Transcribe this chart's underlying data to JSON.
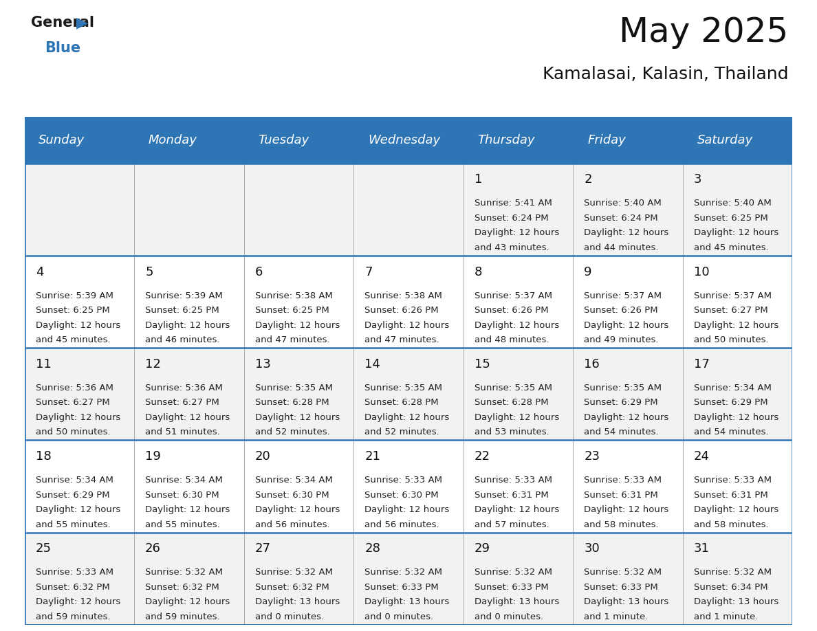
{
  "title": "May 2025",
  "subtitle": "Kamalasai, Kalasin, Thailand",
  "header_bg": "#2E75B6",
  "header_text_color": "#FFFFFF",
  "day_names": [
    "Sunday",
    "Monday",
    "Tuesday",
    "Wednesday",
    "Thursday",
    "Friday",
    "Saturday"
  ],
  "cell_bg_row0": "#F2F2F2",
  "cell_bg_row1": "#FFFFFF",
  "cell_bg_row2": "#F2F2F2",
  "cell_bg_row3": "#FFFFFF",
  "cell_bg_row4": "#F2F2F2",
  "border_color": "#2E75B6",
  "grid_line_color": "#AAAAAA",
  "days": [
    {
      "day": null,
      "col": 0,
      "row": 0
    },
    {
      "day": null,
      "col": 1,
      "row": 0
    },
    {
      "day": null,
      "col": 2,
      "row": 0
    },
    {
      "day": null,
      "col": 3,
      "row": 0
    },
    {
      "day": 1,
      "col": 4,
      "row": 0,
      "sunrise": "5:41 AM",
      "sunset": "6:24 PM",
      "daylight_h": "12 hours",
      "daylight_m": "43 minutes."
    },
    {
      "day": 2,
      "col": 5,
      "row": 0,
      "sunrise": "5:40 AM",
      "sunset": "6:24 PM",
      "daylight_h": "12 hours",
      "daylight_m": "44 minutes."
    },
    {
      "day": 3,
      "col": 6,
      "row": 0,
      "sunrise": "5:40 AM",
      "sunset": "6:25 PM",
      "daylight_h": "12 hours",
      "daylight_m": "45 minutes."
    },
    {
      "day": 4,
      "col": 0,
      "row": 1,
      "sunrise": "5:39 AM",
      "sunset": "6:25 PM",
      "daylight_h": "12 hours",
      "daylight_m": "45 minutes."
    },
    {
      "day": 5,
      "col": 1,
      "row": 1,
      "sunrise": "5:39 AM",
      "sunset": "6:25 PM",
      "daylight_h": "12 hours",
      "daylight_m": "46 minutes."
    },
    {
      "day": 6,
      "col": 2,
      "row": 1,
      "sunrise": "5:38 AM",
      "sunset": "6:25 PM",
      "daylight_h": "12 hours",
      "daylight_m": "47 minutes."
    },
    {
      "day": 7,
      "col": 3,
      "row": 1,
      "sunrise": "5:38 AM",
      "sunset": "6:26 PM",
      "daylight_h": "12 hours",
      "daylight_m": "47 minutes."
    },
    {
      "day": 8,
      "col": 4,
      "row": 1,
      "sunrise": "5:37 AM",
      "sunset": "6:26 PM",
      "daylight_h": "12 hours",
      "daylight_m": "48 minutes."
    },
    {
      "day": 9,
      "col": 5,
      "row": 1,
      "sunrise": "5:37 AM",
      "sunset": "6:26 PM",
      "daylight_h": "12 hours",
      "daylight_m": "49 minutes."
    },
    {
      "day": 10,
      "col": 6,
      "row": 1,
      "sunrise": "5:37 AM",
      "sunset": "6:27 PM",
      "daylight_h": "12 hours",
      "daylight_m": "50 minutes."
    },
    {
      "day": 11,
      "col": 0,
      "row": 2,
      "sunrise": "5:36 AM",
      "sunset": "6:27 PM",
      "daylight_h": "12 hours",
      "daylight_m": "50 minutes."
    },
    {
      "day": 12,
      "col": 1,
      "row": 2,
      "sunrise": "5:36 AM",
      "sunset": "6:27 PM",
      "daylight_h": "12 hours",
      "daylight_m": "51 minutes."
    },
    {
      "day": 13,
      "col": 2,
      "row": 2,
      "sunrise": "5:35 AM",
      "sunset": "6:28 PM",
      "daylight_h": "12 hours",
      "daylight_m": "52 minutes."
    },
    {
      "day": 14,
      "col": 3,
      "row": 2,
      "sunrise": "5:35 AM",
      "sunset": "6:28 PM",
      "daylight_h": "12 hours",
      "daylight_m": "52 minutes."
    },
    {
      "day": 15,
      "col": 4,
      "row": 2,
      "sunrise": "5:35 AM",
      "sunset": "6:28 PM",
      "daylight_h": "12 hours",
      "daylight_m": "53 minutes."
    },
    {
      "day": 16,
      "col": 5,
      "row": 2,
      "sunrise": "5:35 AM",
      "sunset": "6:29 PM",
      "daylight_h": "12 hours",
      "daylight_m": "54 minutes."
    },
    {
      "day": 17,
      "col": 6,
      "row": 2,
      "sunrise": "5:34 AM",
      "sunset": "6:29 PM",
      "daylight_h": "12 hours",
      "daylight_m": "54 minutes."
    },
    {
      "day": 18,
      "col": 0,
      "row": 3,
      "sunrise": "5:34 AM",
      "sunset": "6:29 PM",
      "daylight_h": "12 hours",
      "daylight_m": "55 minutes."
    },
    {
      "day": 19,
      "col": 1,
      "row": 3,
      "sunrise": "5:34 AM",
      "sunset": "6:30 PM",
      "daylight_h": "12 hours",
      "daylight_m": "55 minutes."
    },
    {
      "day": 20,
      "col": 2,
      "row": 3,
      "sunrise": "5:34 AM",
      "sunset": "6:30 PM",
      "daylight_h": "12 hours",
      "daylight_m": "56 minutes."
    },
    {
      "day": 21,
      "col": 3,
      "row": 3,
      "sunrise": "5:33 AM",
      "sunset": "6:30 PM",
      "daylight_h": "12 hours",
      "daylight_m": "56 minutes."
    },
    {
      "day": 22,
      "col": 4,
      "row": 3,
      "sunrise": "5:33 AM",
      "sunset": "6:31 PM",
      "daylight_h": "12 hours",
      "daylight_m": "57 minutes."
    },
    {
      "day": 23,
      "col": 5,
      "row": 3,
      "sunrise": "5:33 AM",
      "sunset": "6:31 PM",
      "daylight_h": "12 hours",
      "daylight_m": "58 minutes."
    },
    {
      "day": 24,
      "col": 6,
      "row": 3,
      "sunrise": "5:33 AM",
      "sunset": "6:31 PM",
      "daylight_h": "12 hours",
      "daylight_m": "58 minutes."
    },
    {
      "day": 25,
      "col": 0,
      "row": 4,
      "sunrise": "5:33 AM",
      "sunset": "6:32 PM",
      "daylight_h": "12 hours",
      "daylight_m": "59 minutes."
    },
    {
      "day": 26,
      "col": 1,
      "row": 4,
      "sunrise": "5:32 AM",
      "sunset": "6:32 PM",
      "daylight_h": "12 hours",
      "daylight_m": "59 minutes."
    },
    {
      "day": 27,
      "col": 2,
      "row": 4,
      "sunrise": "5:32 AM",
      "sunset": "6:32 PM",
      "daylight_h": "13 hours",
      "daylight_m": "0 minutes."
    },
    {
      "day": 28,
      "col": 3,
      "row": 4,
      "sunrise": "5:32 AM",
      "sunset": "6:33 PM",
      "daylight_h": "13 hours",
      "daylight_m": "0 minutes."
    },
    {
      "day": 29,
      "col": 4,
      "row": 4,
      "sunrise": "5:32 AM",
      "sunset": "6:33 PM",
      "daylight_h": "13 hours",
      "daylight_m": "0 minutes."
    },
    {
      "day": 30,
      "col": 5,
      "row": 4,
      "sunrise": "5:32 AM",
      "sunset": "6:33 PM",
      "daylight_h": "13 hours",
      "daylight_m": "1 minute."
    },
    {
      "day": 31,
      "col": 6,
      "row": 4,
      "sunrise": "5:32 AM",
      "sunset": "6:34 PM",
      "daylight_h": "13 hours",
      "daylight_m": "1 minute."
    }
  ],
  "logo_general_color": "#1a1a1a",
  "logo_blue_color": "#2E75B6",
  "logo_triangle_color": "#2E75B6",
  "title_fontsize": 36,
  "subtitle_fontsize": 18,
  "header_fontsize": 13,
  "day_num_fontsize": 13,
  "cell_text_fontsize": 9.5
}
